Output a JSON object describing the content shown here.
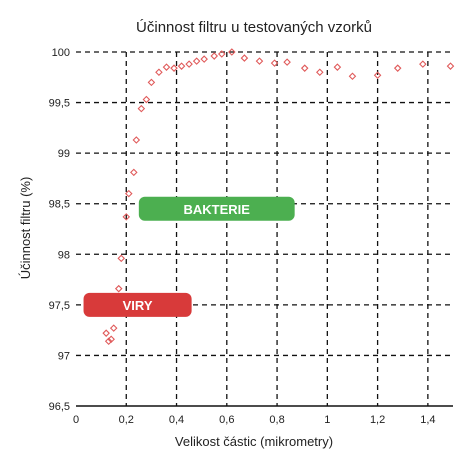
{
  "chart_data": {
    "type": "scatter",
    "title": "Účinnost filtru u testovaných vzorků",
    "xlabel": "Velikost částic (mikrometry)",
    "ylabel": "Účinnost filtru (%)",
    "xlim": [
      0,
      1.5
    ],
    "ylim": [
      96.5,
      100
    ],
    "x_ticks": [
      0,
      0.2,
      0.4,
      0.6,
      0.8,
      1,
      1.2,
      1.4
    ],
    "x_tick_labels": [
      "0",
      "0,2",
      "0,4",
      "0,6",
      "0,8",
      "1",
      "1,2",
      "1,4"
    ],
    "y_ticks": [
      96.5,
      97,
      97.5,
      98,
      98.5,
      99,
      99.5,
      100
    ],
    "y_tick_labels": [
      "96,5",
      "97",
      "97,5",
      "98",
      "98,5",
      "99",
      "99,5",
      "100"
    ],
    "grid": true,
    "marker_color": "#e05a5a",
    "points": [
      {
        "x": 0.12,
        "y": 97.22
      },
      {
        "x": 0.13,
        "y": 97.14
      },
      {
        "x": 0.14,
        "y": 97.16
      },
      {
        "x": 0.15,
        "y": 97.27
      },
      {
        "x": 0.16,
        "y": 97.42
      },
      {
        "x": 0.17,
        "y": 97.66
      },
      {
        "x": 0.18,
        "y": 97.96
      },
      {
        "x": 0.2,
        "y": 98.37
      },
      {
        "x": 0.21,
        "y": 98.6
      },
      {
        "x": 0.23,
        "y": 98.81
      },
      {
        "x": 0.24,
        "y": 99.13
      },
      {
        "x": 0.26,
        "y": 99.44
      },
      {
        "x": 0.28,
        "y": 99.53
      },
      {
        "x": 0.3,
        "y": 99.7
      },
      {
        "x": 0.33,
        "y": 99.8
      },
      {
        "x": 0.36,
        "y": 99.85
      },
      {
        "x": 0.39,
        "y": 99.84
      },
      {
        "x": 0.42,
        "y": 99.86
      },
      {
        "x": 0.45,
        "y": 99.88
      },
      {
        "x": 0.48,
        "y": 99.91
      },
      {
        "x": 0.51,
        "y": 99.93
      },
      {
        "x": 0.55,
        "y": 99.96
      },
      {
        "x": 0.58,
        "y": 99.98
      },
      {
        "x": 0.62,
        "y": 100.0
      },
      {
        "x": 0.67,
        "y": 99.94
      },
      {
        "x": 0.73,
        "y": 99.91
      },
      {
        "x": 0.79,
        "y": 99.89
      },
      {
        "x": 0.84,
        "y": 99.9
      },
      {
        "x": 0.91,
        "y": 99.84
      },
      {
        "x": 0.97,
        "y": 99.8
      },
      {
        "x": 1.04,
        "y": 99.85
      },
      {
        "x": 1.1,
        "y": 99.76
      },
      {
        "x": 1.2,
        "y": 99.77
      },
      {
        "x": 1.28,
        "y": 99.84
      },
      {
        "x": 1.38,
        "y": 99.88
      },
      {
        "x": 1.49,
        "y": 99.86
      }
    ],
    "annotations": [
      {
        "label": "BAKTERIE",
        "color": "#4caf50",
        "x_start": 0.25,
        "x_end": 0.87,
        "y": 98.45
      },
      {
        "label": "VIRY",
        "color": "#d83a3a",
        "x_start": 0.03,
        "x_end": 0.46,
        "y": 97.5
      }
    ]
  }
}
